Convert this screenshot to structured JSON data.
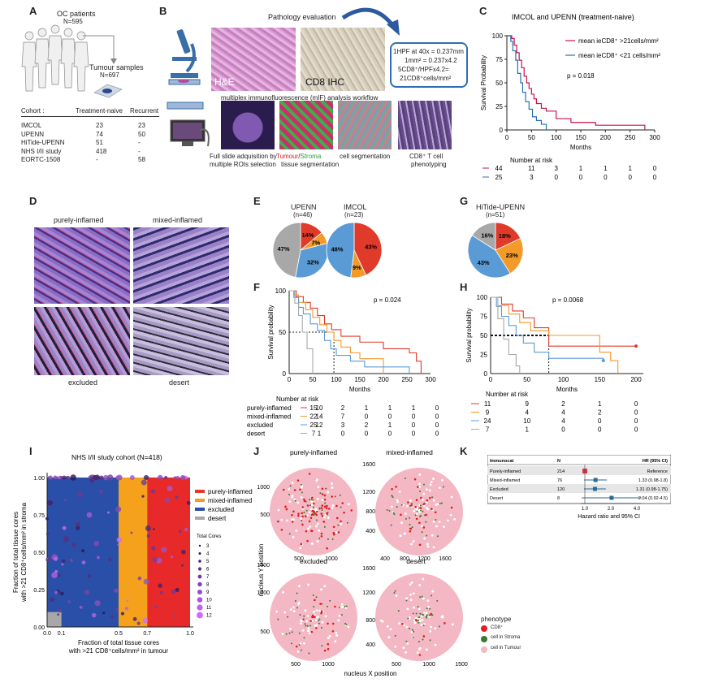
{
  "panels": {
    "A": "A",
    "B": "B",
    "C": "C",
    "D": "D",
    "E": "E",
    "F": "F",
    "G": "G",
    "H": "H",
    "I": "I",
    "J": "J",
    "K": "K"
  },
  "a": {
    "patients_title": "OC patients",
    "patients_n": "N=595",
    "samples_title": "Tumour samples",
    "samples_n": "N=697",
    "col_cohort": "Cohort :",
    "col_naive": "Treatment-naive",
    "col_recurrent": "Recurrent",
    "rows": [
      {
        "cohort": "IMCOL",
        "naive": "23",
        "recurrent": "23"
      },
      {
        "cohort": "UPENN",
        "naive": "74",
        "recurrent": "50"
      },
      {
        "cohort": "HiTide-UPENN",
        "naive": "51",
        "recurrent": "-"
      },
      {
        "cohort": "NHS I/II study",
        "naive": "418",
        "recurrent": "-"
      },
      {
        "cohort": "EORTC-1508",
        "naive": "-",
        "recurrent": "58"
      }
    ]
  },
  "b": {
    "title": "Pathology evaluation",
    "he_label": "H&E",
    "ihc_label": "CD8 IHC",
    "box_lines": [
      "1HPF at 40x = 0.237mm",
      "1mm² = 0.237x4.2",
      "5CD8⁺/HPFx4.2=",
      "21CD8⁺cells/mm²"
    ],
    "mif_title": "multiplex immunofluorescence (mIF) analysis workflow",
    "cap1a": "Full slide adquisition by",
    "cap1b": "multiple ROIs selection",
    "cap2a": "Tumour",
    "cap2sep": "/",
    "cap2b": "Stroma",
    "cap2c": "tissue segmentation",
    "cap3": "cell segmentation",
    "cap4a": "CD8⁺ T cell",
    "cap4b": "phenotyping"
  },
  "c": {
    "title": "IMCOL and UPENN (treatment-naive)",
    "legend": [
      "mean ieCD8⁺ >21cells/mm²",
      "mean ieCD8⁺ <21 cells/mm²"
    ],
    "pvalue": "p = 0.018",
    "ylabel": "Survival Probability",
    "xlabel": "Months",
    "xticks": [
      "0",
      "50",
      "100",
      "150",
      "200",
      "250",
      "300"
    ],
    "yticks": [
      "0",
      "25",
      "50",
      "75",
      "100"
    ],
    "risk_title": "Number at risk",
    "risk": [
      {
        "n": "44",
        "vals": [
          "44",
          "11",
          "3",
          "1",
          "1",
          "1",
          "0"
        ]
      },
      {
        "n": "25",
        "vals": [
          "25",
          "3",
          "0",
          "0",
          "0",
          "0",
          "0"
        ]
      }
    ],
    "colors": [
      "#c8144a",
      "#2a6fb0"
    ]
  },
  "d": {
    "labels": [
      "purely-inflamed",
      "mixed-inflamed",
      "excluded",
      "desert"
    ]
  },
  "e": {
    "pies": [
      {
        "title": "UPENN",
        "n": "(n=46)",
        "labels": [
          "14%",
          "7%",
          "32%",
          "47%"
        ],
        "values": [
          14,
          7,
          32,
          47
        ]
      },
      {
        "title": "IMCOL",
        "n": "(n=23)",
        "labels": [
          "43%",
          "9%",
          "48%",
          ""
        ],
        "values": [
          43,
          9,
          48,
          0
        ]
      }
    ],
    "colors": [
      "#e03a2a",
      "#f39a2a",
      "#5b9bd5",
      "#a8a8a8"
    ]
  },
  "g": {
    "title": "HiTide-UPENN",
    "n": "(n=51)",
    "labels": [
      "18%",
      "23%",
      "43%",
      "16%"
    ],
    "values": [
      18,
      23,
      43,
      16
    ]
  },
  "f": {
    "pvalue": "p = 0.024",
    "ylabel": "Survival probability",
    "xlabel": "Months",
    "xticks": [
      "0",
      "50",
      "100",
      "150",
      "200",
      "250",
      "300"
    ],
    "yticks": [
      "0",
      "50",
      "100"
    ],
    "risk_title": "Number at risk",
    "risk": [
      {
        "name": "purely-inflamed",
        "vals": [
          "15",
          "10",
          "2",
          "1",
          "1",
          "1",
          "0"
        ]
      },
      {
        "name": "mixed-inflamed",
        "vals": [
          "22",
          "14",
          "7",
          "0",
          "0",
          "0",
          "0"
        ]
      },
      {
        "name": "excluded",
        "vals": [
          "25",
          "12",
          "3",
          "2",
          "1",
          "0",
          "0"
        ]
      },
      {
        "name": "desert",
        "vals": [
          "7",
          "1",
          "0",
          "0",
          "0",
          "0",
          "0"
        ]
      }
    ]
  },
  "h": {
    "pvalue": "p = 0.0068",
    "ylabel": "Survival probability",
    "xlabel": "Months",
    "xticks": [
      "0",
      "50",
      "100",
      "150",
      "200"
    ],
    "yticks": [
      "0",
      "25",
      "50",
      "75",
      "100"
    ],
    "risk_title": "Number at risk",
    "risk": [
      {
        "vals": [
          "11",
          "9",
          "2",
          "1",
          "0"
        ]
      },
      {
        "vals": [
          "9",
          "4",
          "4",
          "2",
          "0"
        ]
      },
      {
        "vals": [
          "24",
          "10",
          "4",
          "0",
          "0"
        ]
      },
      {
        "vals": [
          "7",
          "1",
          "0",
          "0",
          "0"
        ]
      }
    ]
  },
  "i": {
    "title": "NHS I/II study cohort (N=418)",
    "ylabel1": "Fraction of total tissue cores",
    "ylabel2": "with >21 CD8⁺cells/mm² in stroma",
    "xlabel1": "Fraction of total tissue cores",
    "xlabel2": "with >21 CD8⁺cells/mm² in tumour",
    "xticks": [
      "0.0",
      "0.1",
      "0.5",
      "0.7",
      "1.0"
    ],
    "yticks": [
      "0.00",
      "0.25",
      "0.50",
      "0.75",
      "1.00"
    ],
    "legend": [
      "purely-inflamed",
      "mixed-inflamed",
      "excluded",
      "desert"
    ],
    "size_title": "Total Cores",
    "size_vals": [
      "3",
      "4",
      "5",
      "6",
      "7",
      "8",
      "9",
      "10",
      "11",
      "12"
    ]
  },
  "j": {
    "titles": [
      "purely-inflamed",
      "mixed-inflamed",
      "excluded",
      "desert"
    ],
    "ylabel": "nucleus Y position",
    "xlabel": "nucleus X position",
    "legend_title": "phenotype",
    "legend": [
      "CD8⁺",
      "cell in Stroma",
      "cell in Tumour"
    ],
    "ticks_a_y": [
      "500",
      "1000"
    ],
    "ticks_b_y": [
      "400",
      "800",
      "1200",
      "1600"
    ],
    "ticks_b_x": [
      "400",
      "800",
      "1200",
      "1600"
    ],
    "ticks_c_y": [
      "500",
      "1000",
      "1500"
    ],
    "ticks_d_y": [
      "400",
      "800",
      "1200",
      "1600"
    ],
    "ticks_c_x": [
      "500",
      "1000"
    ],
    "ticks_d_x": [
      "500",
      "1000",
      "1500"
    ],
    "ticks_a_x": [
      "500",
      "1000"
    ]
  },
  "k": {
    "headers": [
      "Immunocat",
      "N",
      "HR (95% CI)"
    ],
    "rows": [
      {
        "name": "Purely-inflamed",
        "n": "214",
        "hr": "Reference"
      },
      {
        "name": "Mixed-inflamed",
        "n": "76",
        "hr": "1.33 (0.98-1.8)"
      },
      {
        "name": "Excluded",
        "n": "120",
        "hr": "1.31 (0.98-1.75)"
      },
      {
        "name": "Desert",
        "n": "8",
        "hr": "2.04 (0.92-4.5)"
      }
    ],
    "xticks": [
      "1.0",
      "2.0",
      "4.0"
    ],
    "xlabel": "Hazard ratio and 95% CI"
  },
  "chart_data": [
    {
      "type": "line",
      "id": "C",
      "title": "IMCOL and UPENN (treatment-naive)",
      "xlabel": "Months",
      "ylabel": "Survival Probability",
      "xlim": [
        0,
        300
      ],
      "ylim": [
        0,
        100
      ],
      "series": [
        {
          "name": "mean ieCD8⁺ >21cells/mm²",
          "x": [
            0,
            10,
            15,
            20,
            25,
            30,
            35,
            40,
            45,
            50,
            55,
            60,
            70,
            80,
            100,
            130,
            180,
            265,
            280
          ],
          "y": [
            100,
            97,
            90,
            82,
            74,
            66,
            57,
            50,
            44,
            38,
            33,
            28,
            23,
            20,
            12,
            8,
            5,
            5,
            0
          ]
        },
        {
          "name": "mean ieCD8⁺ <21 cells/mm²",
          "x": [
            0,
            8,
            12,
            18,
            22,
            28,
            32,
            38,
            45,
            52,
            60,
            70,
            80
          ],
          "y": [
            100,
            94,
            84,
            74,
            60,
            50,
            40,
            30,
            22,
            14,
            10,
            6,
            0
          ]
        }
      ]
    },
    {
      "type": "pie",
      "id": "E-UPENN",
      "categories": [
        "purely-inflamed",
        "mixed-inflamed",
        "excluded",
        "desert"
      ],
      "values": [
        14,
        7,
        32,
        47
      ]
    },
    {
      "type": "pie",
      "id": "E-IMCOL",
      "categories": [
        "purely-inflamed",
        "mixed-inflamed",
        "excluded",
        "desert"
      ],
      "values": [
        43,
        9,
        48,
        0
      ]
    },
    {
      "type": "pie",
      "id": "G",
      "categories": [
        "purely-inflamed",
        "mixed-inflamed",
        "excluded",
        "desert"
      ],
      "values": [
        18,
        23,
        43,
        16
      ]
    },
    {
      "type": "line",
      "id": "F",
      "xlabel": "Months",
      "ylabel": "Survival probability",
      "xlim": [
        0,
        300
      ],
      "ylim": [
        0,
        100
      ],
      "series": [
        {
          "name": "purely-inflamed",
          "x": [
            0,
            15,
            30,
            45,
            60,
            75,
            90,
            110,
            150,
            200,
            255,
            270,
            280
          ],
          "y": [
            100,
            93,
            86,
            79,
            70,
            60,
            53,
            45,
            38,
            30,
            25,
            15,
            0
          ]
        },
        {
          "name": "mixed-inflamed",
          "x": [
            0,
            10,
            20,
            35,
            50,
            65,
            80,
            95,
            110,
            130,
            150,
            200
          ],
          "y": [
            100,
            95,
            86,
            77,
            68,
            59,
            50,
            40,
            32,
            25,
            18,
            0
          ]
        },
        {
          "name": "excluded",
          "x": [
            0,
            10,
            20,
            30,
            45,
            60,
            75,
            88,
            100,
            130,
            160,
            255
          ],
          "y": [
            100,
            92,
            80,
            72,
            60,
            52,
            40,
            30,
            22,
            15,
            8,
            0
          ]
        },
        {
          "name": "desert",
          "x": [
            0,
            12,
            20,
            28,
            38,
            50
          ],
          "y": [
            100,
            85,
            70,
            50,
            30,
            0
          ]
        }
      ]
    },
    {
      "type": "line",
      "id": "H",
      "xlabel": "Months",
      "ylabel": "Survival probability",
      "xlim": [
        0,
        210
      ],
      "ylim": [
        0,
        100
      ],
      "series": [
        {
          "name": "purely-inflamed",
          "x": [
            0,
            15,
            30,
            45,
            60,
            80,
            200
          ],
          "y": [
            100,
            91,
            82,
            73,
            60,
            36,
            36
          ]
        },
        {
          "name": "mixed-inflamed",
          "x": [
            0,
            10,
            25,
            40,
            55,
            80,
            150,
            165,
            175
          ],
          "y": [
            100,
            89,
            78,
            67,
            56,
            50,
            28,
            17,
            0
          ]
        },
        {
          "name": "excluded",
          "x": [
            0,
            8,
            15,
            25,
            35,
            45,
            60,
            80,
            155
          ],
          "y": [
            100,
            88,
            75,
            63,
            50,
            40,
            28,
            20,
            17
          ]
        },
        {
          "name": "desert",
          "x": [
            0,
            10,
            18,
            25,
            35,
            40
          ],
          "y": [
            100,
            72,
            45,
            25,
            10,
            0
          ]
        }
      ]
    },
    {
      "type": "forest",
      "id": "K",
      "categories": [
        "Purely-inflamed",
        "Mixed-inflamed",
        "Excluded",
        "Desert"
      ],
      "hr": [
        1.0,
        1.33,
        1.31,
        2.04
      ],
      "lo": [
        1.0,
        0.98,
        0.98,
        0.92
      ],
      "hi": [
        1.0,
        1.8,
        1.75,
        4.5
      ],
      "xlabel": "Hazard ratio and 95% CI"
    }
  ]
}
